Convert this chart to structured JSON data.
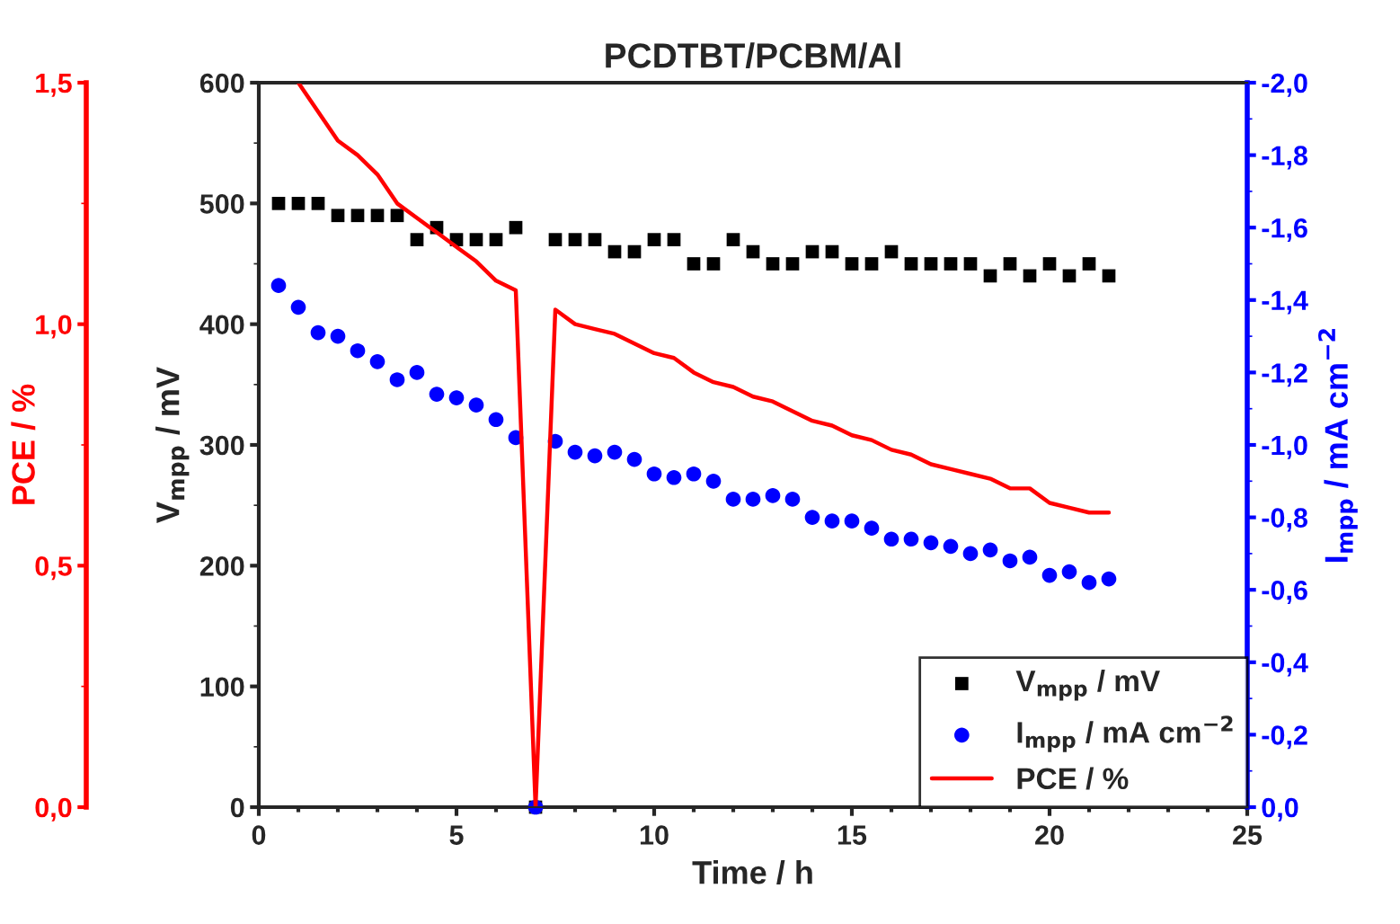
{
  "chart_data": {
    "type": "scatter",
    "title": "PCDTBT/PCBM/Al",
    "xlabel": "Time / h",
    "ylabel": "V$_{mpp}$ / mV",
    "y2label": "I$_{mpp}$ / mA cm$^{−2}$",
    "y3label": "PCE / %",
    "xlim": [
      0,
      25
    ],
    "xticks": [
      0,
      5,
      10,
      15,
      20,
      25
    ],
    "ylim": [
      0,
      600
    ],
    "yticks": [
      0,
      100,
      200,
      300,
      400,
      500,
      600
    ],
    "y2lim": [
      0,
      -2.0
    ],
    "y2ticks": [
      {
        "value": 0,
        "label": "0,0"
      },
      {
        "value": -0.2,
        "label": "-0,2"
      },
      {
        "value": -0.4,
        "label": "-0,4"
      },
      {
        "value": -0.6,
        "label": "-0,6"
      },
      {
        "value": -0.8,
        "label": "-0,8"
      },
      {
        "value": -1.0,
        "label": "-1,0"
      },
      {
        "value": -1.2,
        "label": "-1,2"
      },
      {
        "value": -1.4,
        "label": "-1,4"
      },
      {
        "value": -1.6,
        "label": "-1,6"
      },
      {
        "value": -1.8,
        "label": "-1,8"
      },
      {
        "value": -2.0,
        "label": "-2,0"
      }
    ],
    "y3lim": [
      0,
      1.5
    ],
    "y3ticks": [
      {
        "value": 0,
        "label": "0,0"
      },
      {
        "value": 0.5,
        "label": "0,5"
      },
      {
        "value": 1.0,
        "label": "1,0"
      },
      {
        "value": 1.5,
        "label": "1,5"
      }
    ],
    "legend": "bottom right",
    "grid": false,
    "series": [
      {
        "name": "V$_{mpp}$ / mV",
        "marker": "square",
        "color": "#000000",
        "x": [
          0.5,
          1,
          1.5,
          2,
          2.5,
          3,
          3.5,
          4,
          4.5,
          5,
          5.5,
          6,
          6.5,
          7,
          7.5,
          8,
          8.5,
          9,
          9.5,
          10,
          10.5,
          11,
          11.5,
          12,
          12.5,
          13,
          13.5,
          14,
          14.5,
          15,
          15.5,
          16,
          16.5,
          17,
          17.5,
          18,
          18.5,
          19,
          19.5,
          20,
          20.5,
          21,
          21.5
        ],
        "values": [
          500,
          500,
          500,
          490,
          490,
          490,
          490,
          470,
          480,
          470,
          470,
          470,
          480,
          0,
          470,
          470,
          470,
          460,
          460,
          470,
          470,
          450,
          450,
          470,
          460,
          450,
          450,
          460,
          460,
          450,
          450,
          460,
          450,
          450,
          450,
          450,
          440,
          450,
          440,
          450,
          440,
          450,
          440
        ]
      },
      {
        "name": "I$_{mpp}$ / mA cm$^{−2}$",
        "marker": "circle",
        "axis": "y2",
        "color": "#0000ff",
        "x": [
          0.5,
          1,
          1.5,
          2,
          2.5,
          3,
          3.5,
          4,
          4.5,
          5,
          5.5,
          6,
          6.5,
          7,
          7.5,
          8,
          8.5,
          9,
          9.5,
          10,
          10.5,
          11,
          11.5,
          12,
          12.5,
          13,
          13.5,
          14,
          14.5,
          15,
          15.5,
          16,
          16.5,
          17,
          17.5,
          18,
          18.5,
          19,
          19.5,
          20,
          20.5,
          21,
          21.5
        ],
        "values": [
          -1.44,
          -1.38,
          -1.31,
          -1.3,
          -1.26,
          -1.23,
          -1.18,
          -1.2,
          -1.14,
          -1.13,
          -1.11,
          -1.07,
          -1.02,
          0,
          -1.01,
          -0.98,
          -0.97,
          -0.98,
          -0.96,
          -0.92,
          -0.91,
          -0.92,
          -0.9,
          -0.85,
          -0.85,
          -0.86,
          -0.85,
          -0.8,
          -0.79,
          -0.79,
          -0.77,
          -0.74,
          -0.74,
          -0.73,
          -0.72,
          -0.7,
          -0.71,
          -0.68,
          -0.69,
          -0.64,
          -0.65,
          -0.62,
          -0.63
        ]
      },
      {
        "name": "PCE / %",
        "type": "line",
        "marker": "none",
        "axis": "y3",
        "color": "#ff0000",
        "x": [
          1,
          1.5,
          2,
          2.5,
          3,
          3.5,
          4,
          4.5,
          5,
          5.5,
          6,
          6.5,
          7,
          7.5,
          8,
          8.5,
          9,
          9.5,
          10,
          10.5,
          11,
          11.5,
          12,
          12.5,
          13,
          13.5,
          14,
          14.5,
          15,
          15.5,
          16,
          16.5,
          17,
          17.5,
          18,
          18.5,
          19,
          19.5,
          20,
          20.5,
          21,
          21.5
        ],
        "values": [
          1.5,
          1.44,
          1.38,
          1.35,
          1.31,
          1.25,
          1.22,
          1.19,
          1.16,
          1.13,
          1.09,
          1.07,
          0,
          1.03,
          1.0,
          0.99,
          0.98,
          0.96,
          0.94,
          0.93,
          0.9,
          0.88,
          0.87,
          0.85,
          0.84,
          0.82,
          0.8,
          0.79,
          0.77,
          0.76,
          0.74,
          0.73,
          0.71,
          0.7,
          0.69,
          0.68,
          0.66,
          0.66,
          0.63,
          0.62,
          0.61,
          0.61
        ]
      }
    ]
  }
}
